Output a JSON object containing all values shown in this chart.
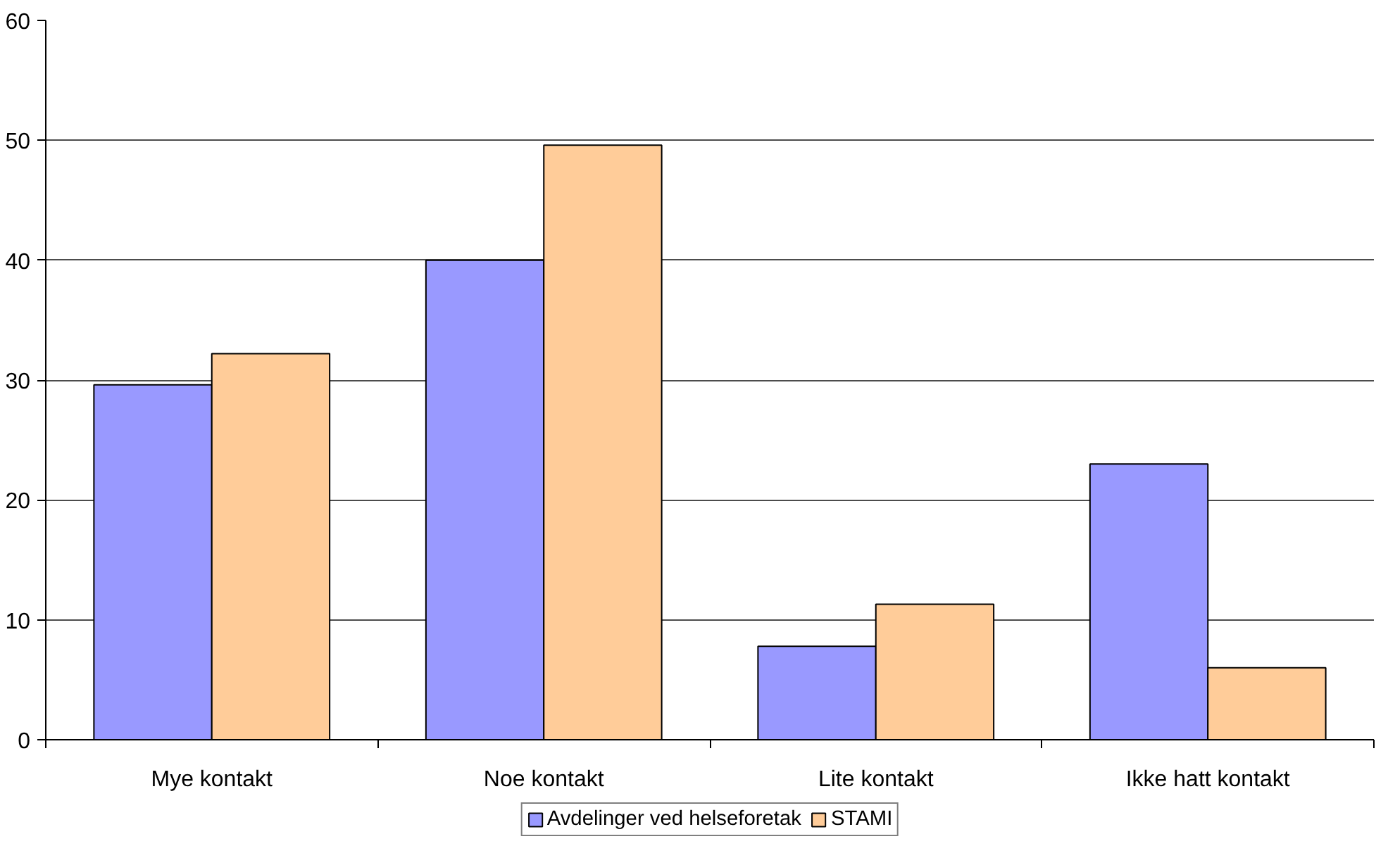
{
  "chart_data": {
    "type": "bar",
    "categories": [
      "Mye kontakt",
      "Noe kontakt",
      "Lite kontakt",
      "Ikke hatt kontakt"
    ],
    "series": [
      {
        "name": "Avdelinger ved helseforetak",
        "color": "#9999ff",
        "values": [
          29.6,
          40.0,
          7.8,
          23.0
        ]
      },
      {
        "name": "STAMI",
        "color": "#ffcc99",
        "values": [
          32.2,
          49.6,
          11.3,
          6.0
        ]
      }
    ],
    "ylim": [
      0,
      60
    ],
    "yticks": [
      0,
      10,
      20,
      30,
      40,
      50,
      60
    ],
    "grid": "y",
    "legend": "bottom"
  }
}
